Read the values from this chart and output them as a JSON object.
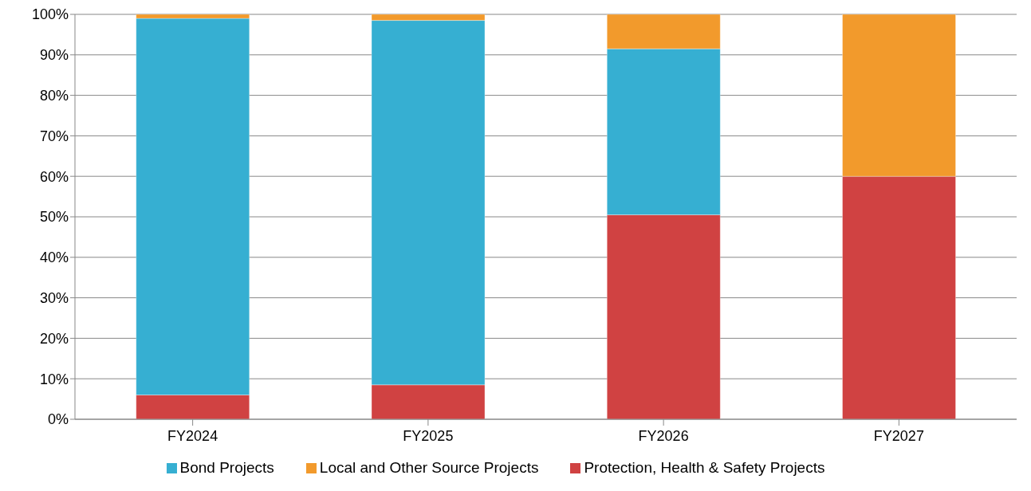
{
  "chart_data": {
    "type": "bar",
    "stacked": true,
    "categories": [
      "FY2024",
      "FY2025",
      "FY2026",
      "FY2027"
    ],
    "series": [
      {
        "name": "Protection, Health & Safety Projects",
        "color": "#d04242",
        "values": [
          6,
          8.5,
          50.5,
          60
        ]
      },
      {
        "name": "Bond Projects",
        "color": "#36afd2",
        "values": [
          93,
          90,
          41,
          0
        ]
      },
      {
        "name": "Local and Other Source Projects",
        "color": "#f29a2c",
        "values": [
          1,
          1.5,
          8.5,
          40
        ]
      }
    ],
    "ylim": [
      0,
      100
    ],
    "yticks": [
      {
        "value": 0,
        "label": "0%"
      },
      {
        "value": 10,
        "label": "10%"
      },
      {
        "value": 20,
        "label": "20%"
      },
      {
        "value": 30,
        "label": "30%"
      },
      {
        "value": 40,
        "label": "40%"
      },
      {
        "value": 50,
        "label": "50%"
      },
      {
        "value": 60,
        "label": "60%"
      },
      {
        "value": 70,
        "label": "70%"
      },
      {
        "value": 80,
        "label": "80%"
      },
      {
        "value": 90,
        "label": "90%"
      },
      {
        "value": 100,
        "label": "100%"
      }
    ],
    "grid": "y",
    "legend": "bottom"
  }
}
